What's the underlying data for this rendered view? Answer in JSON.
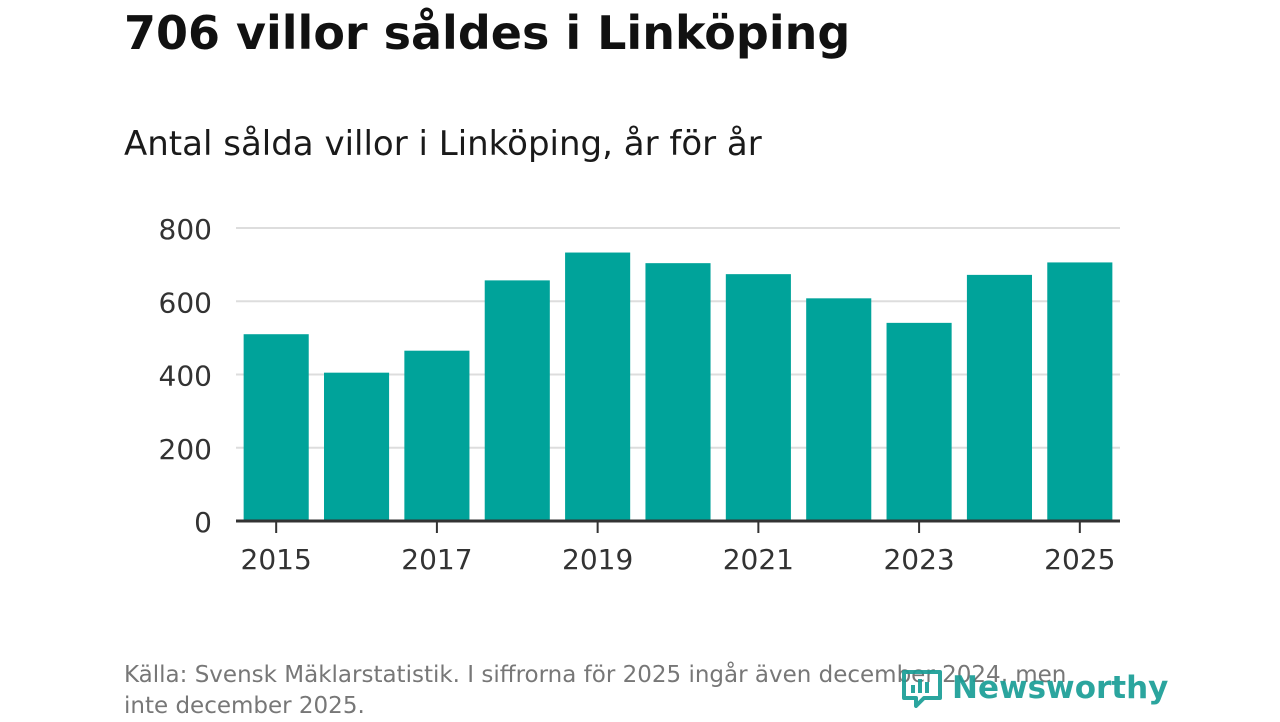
{
  "header": {
    "title": "706 villor såldes i Linköping"
  },
  "chart_data": {
    "type": "bar",
    "title": "706 villor såldes i Linköping",
    "subtitle": "Antal sålda villor i Linköping, år för år",
    "xlabel": "",
    "ylabel": "",
    "categories": [
      "2015",
      "2016",
      "2017",
      "2018",
      "2019",
      "2020",
      "2021",
      "2022",
      "2023",
      "2024",
      "2025"
    ],
    "values": [
      510,
      405,
      465,
      657,
      733,
      704,
      674,
      608,
      541,
      672,
      706
    ],
    "x_tick_labels": [
      "2015",
      "2017",
      "2019",
      "2021",
      "2023",
      "2025"
    ],
    "y_tick_labels": [
      "0",
      "200",
      "400",
      "600",
      "800"
    ],
    "ylim": [
      0,
      800
    ],
    "grid": true,
    "bar_color": "#00a39a"
  },
  "footer": {
    "source": "Källa: Svensk Mäklarstatistik. I siffrorna för 2025 ingår även december 2024, men inte december 2025.",
    "logo_text": "Newsworthy"
  },
  "icons": {
    "logo": "newsworthy-logo-icon"
  }
}
